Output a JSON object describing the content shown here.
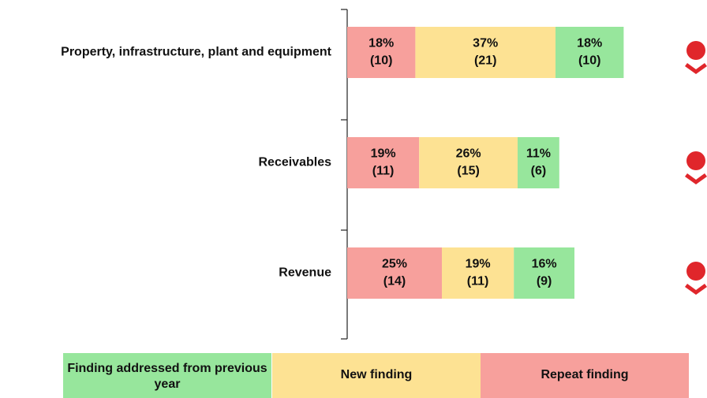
{
  "chart_data": {
    "type": "stacked-barh",
    "categories": [
      "Property, infrastructure, plant and equipment",
      "Receivables",
      "Revenue"
    ],
    "series": [
      {
        "name": "Repeat finding",
        "color": "#f7a09c",
        "values": [
          18,
          19,
          25
        ],
        "value_labels": [
          "18%",
          "19%",
          "25%"
        ],
        "count_labels": [
          "(10)",
          "(11)",
          "(14)"
        ]
      },
      {
        "name": "New finding",
        "color": "#fde293",
        "values": [
          37,
          26,
          19
        ],
        "value_labels": [
          "37%",
          "26%",
          "19%"
        ],
        "count_labels": [
          "(21)",
          "(15)",
          "(11)"
        ]
      },
      {
        "name": "Finding addressed from previous year",
        "color": "#97e69c",
        "values": [
          18,
          11,
          16
        ],
        "value_labels": [
          "18%",
          "11%",
          "16%"
        ],
        "count_labels": [
          "(10)",
          "(6)",
          "(9)"
        ]
      }
    ]
  }
}
